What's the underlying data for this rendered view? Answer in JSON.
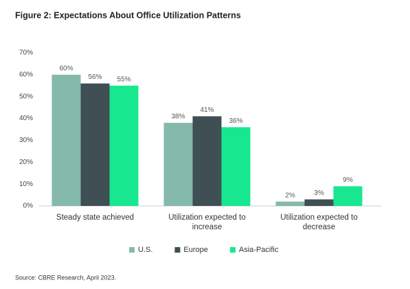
{
  "chart_data": {
    "type": "bar",
    "title": "Figure 2: Expectations About Office Utilization Patterns",
    "categories": [
      "Steady state achieved",
      "Utilization expected to increase",
      "Utilization expected to decrease"
    ],
    "series": [
      {
        "name": "U.S.",
        "color": "#85b9ab",
        "values": [
          60,
          38,
          2
        ],
        "value_labels": [
          "60%",
          "38%",
          "2%"
        ]
      },
      {
        "name": "Europe",
        "color": "#3f4f53",
        "values": [
          56,
          41,
          3
        ],
        "value_labels": [
          "56%",
          "41%",
          "3%"
        ]
      },
      {
        "name": "Asia-Pacific",
        "color": "#17e88f",
        "values": [
          55,
          36,
          9
        ],
        "value_labels": [
          "55%",
          "36%",
          "9%"
        ]
      }
    ],
    "ylim": [
      0,
      70
    ],
    "yticks": [
      {
        "value": 0,
        "label": "0%"
      },
      {
        "value": 10,
        "label": "10%"
      },
      {
        "value": 20,
        "label": "20%"
      },
      {
        "value": 30,
        "label": "30%"
      },
      {
        "value": 40,
        "label": "40%"
      },
      {
        "value": 50,
        "label": "50%"
      },
      {
        "value": 60,
        "label": "60%"
      },
      {
        "value": 70,
        "label": "70%"
      }
    ],
    "grid": false,
    "legend": "bottom",
    "source": "Source: CBRE Research, April 2023."
  }
}
